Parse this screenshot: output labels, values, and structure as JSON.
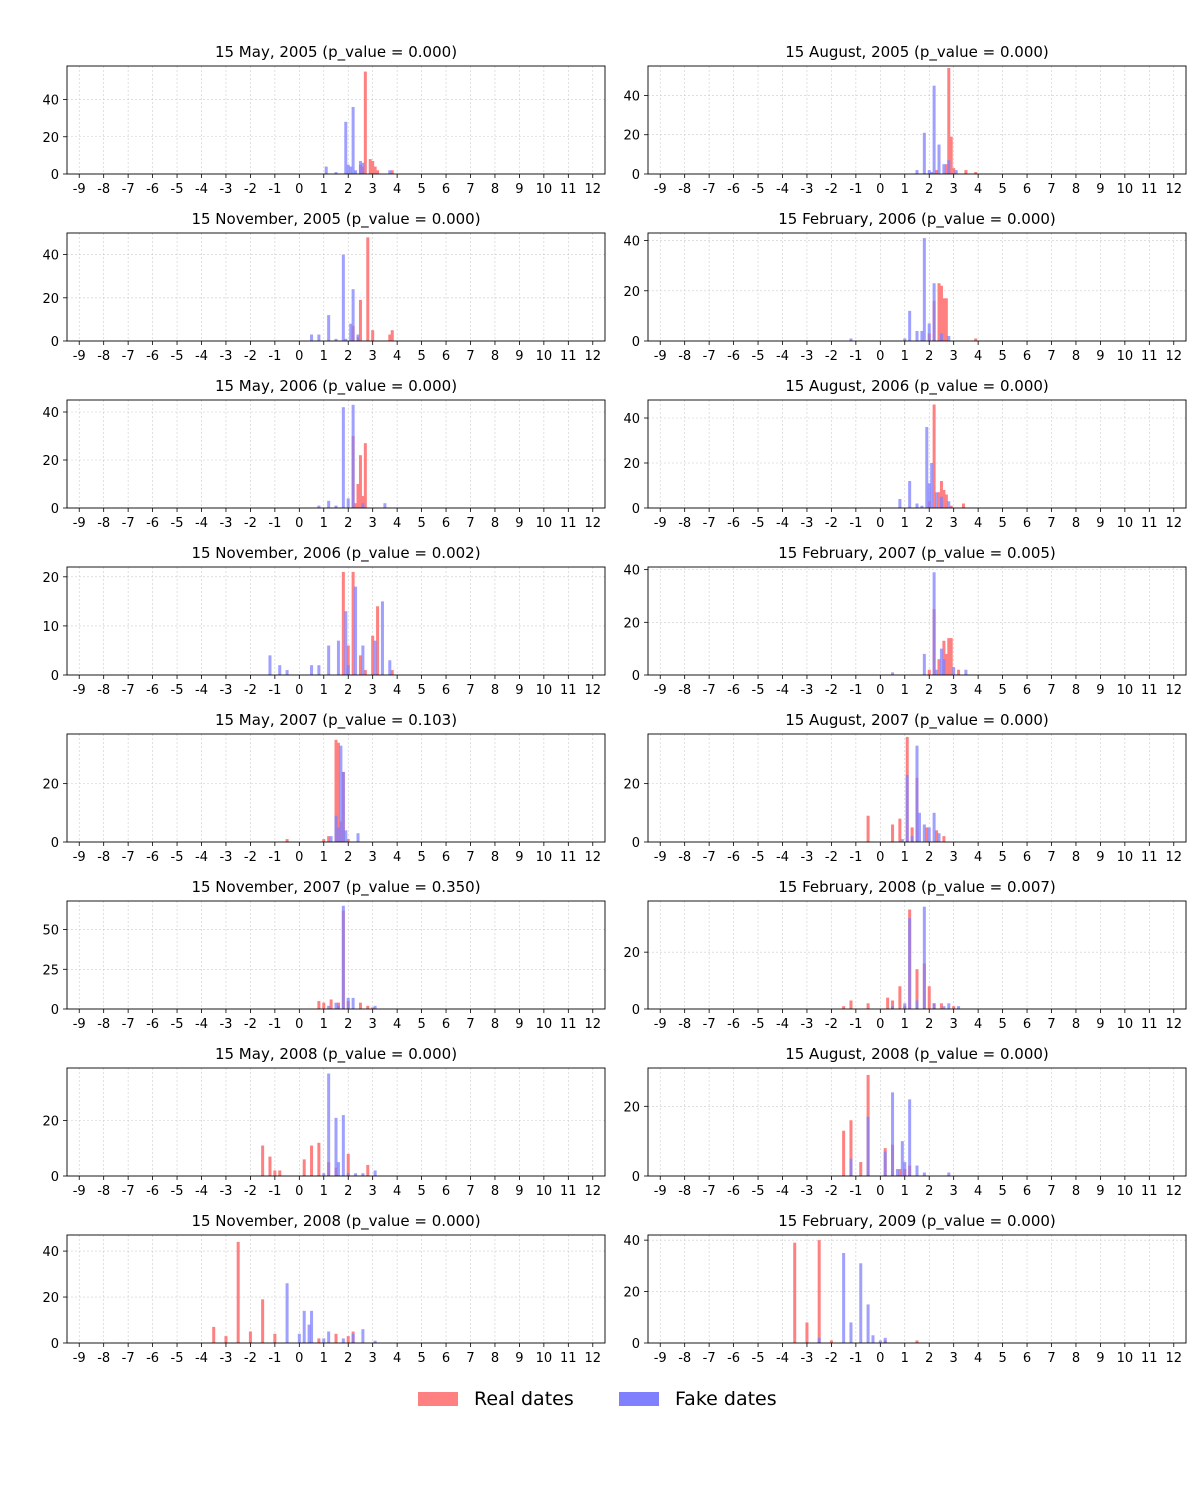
{
  "chart_data": {
    "type": "bar",
    "layout": "grid-2-columns",
    "x_ticks": [
      "-9",
      "-8",
      "-7",
      "-6",
      "-5",
      "-4",
      "-3",
      "-2",
      "-1",
      "0",
      "1",
      "2",
      "3",
      "4",
      "5",
      "6",
      "7",
      "8",
      "9",
      "10",
      "11",
      "12"
    ],
    "xlim": [
      -9.5,
      12.5
    ],
    "grid": true,
    "colors": {
      "real": "#ff8080",
      "fake": "#8080ff",
      "overlap": "#8040c0"
    },
    "legend": {
      "position": "bottom-center",
      "entries": [
        "Real dates",
        "Fake dates"
      ]
    },
    "panels": [
      {
        "title": "15 May, 2005 (p_value = 0.000)",
        "ylim": [
          0,
          58
        ],
        "yticks": [
          "0",
          "20",
          "40"
        ],
        "series": [
          {
            "name": "Real dates",
            "x": [
              2.7,
              2.9,
              3.0,
              3.1,
              2.5,
              2.6,
              3.8,
              3.2
            ],
            "values": [
              55,
              8,
              7,
              4,
              5,
              4,
              2,
              2
            ]
          },
          {
            "name": "Fake dates",
            "x": [
              1.9,
              2.2,
              1.1,
              2.0,
              2.1,
              2.5,
              2.6,
              2.3,
              1.5,
              3.7
            ],
            "values": [
              28,
              36,
              4,
              5,
              4,
              7,
              6,
              2,
              1,
              2
            ]
          }
        ]
      },
      {
        "title": "15 August, 2005 (p_value = 0.000)",
        "ylim": [
          0,
          55
        ],
        "yticks": [
          "0",
          "20",
          "40"
        ],
        "series": [
          {
            "name": "Real dates",
            "x": [
              2.8,
              2.9,
              3.0,
              2.7,
              3.5,
              3.9,
              2.3
            ],
            "values": [
              54,
              19,
              3,
              5,
              2,
              1,
              2
            ]
          },
          {
            "name": "Fake dates",
            "x": [
              1.8,
              2.2,
              2.4,
              2.0,
              2.6,
              2.8,
              1.5,
              3.1,
              2.1
            ],
            "values": [
              21,
              45,
              15,
              2,
              5,
              7,
              2,
              2,
              1
            ]
          }
        ]
      },
      {
        "title": "15 November, 2005 (p_value = 0.000)",
        "ylim": [
          0,
          50
        ],
        "yticks": [
          "0",
          "20",
          "40"
        ],
        "series": [
          {
            "name": "Real dates",
            "x": [
              2.8,
              2.5,
              3.7,
              3.8,
              2.2,
              3.0,
              2.4
            ],
            "values": [
              48,
              19,
              3,
              5,
              7,
              5,
              2
            ]
          },
          {
            "name": "Fake dates",
            "x": [
              1.8,
              2.2,
              2.1,
              1.2,
              0.5,
              0.8,
              2.4,
              1.5,
              1.9
            ],
            "values": [
              40,
              24,
              8,
              12,
              3,
              3,
              3,
              1,
              1
            ]
          }
        ]
      },
      {
        "title": "15 February, 2006 (p_value = 0.000)",
        "ylim": [
          0,
          43
        ],
        "yticks": [
          "0",
          "20",
          "40"
        ],
        "series": [
          {
            "name": "Real dates",
            "x": [
              2.2,
              2.4,
              2.5,
              2.6,
              2.7,
              2.0,
              3.9
            ],
            "values": [
              16,
              23,
              22,
              17,
              17,
              3,
              1
            ]
          },
          {
            "name": "Fake dates",
            "x": [
              1.8,
              2.2,
              1.2,
              2.0,
              1.5,
              1.7,
              2.5,
              2.8,
              1.0,
              -1.2
            ],
            "values": [
              41,
              23,
              12,
              7,
              4,
              4,
              3,
              2,
              1,
              1
            ]
          }
        ]
      },
      {
        "title": "15 May, 2006 (p_value = 0.000)",
        "ylim": [
          0,
          45
        ],
        "yticks": [
          "0",
          "20",
          "40"
        ],
        "series": [
          {
            "name": "Real dates",
            "x": [
              2.2,
              2.5,
              2.7,
              2.4,
              2.6,
              2.3
            ],
            "values": [
              30,
              22,
              27,
              10,
              5,
              2
            ]
          },
          {
            "name": "Fake dates",
            "x": [
              1.8,
              2.2,
              2.0,
              1.2,
              2.6,
              3.5,
              0.8,
              1.5
            ],
            "values": [
              42,
              43,
              4,
              3,
              2,
              2,
              1,
              1
            ]
          }
        ]
      },
      {
        "title": "15 August, 2006 (p_value = 0.000)",
        "ylim": [
          0,
          48
        ],
        "yticks": [
          "0",
          "20",
          "40"
        ],
        "series": [
          {
            "name": "Real dates",
            "x": [
              2.2,
              2.5,
              2.4,
              2.6,
              2.7,
              2.0,
              3.4,
              2.9
            ],
            "values": [
              46,
              12,
              7,
              8,
              6,
              3,
              2,
              1
            ]
          },
          {
            "name": "Fake dates",
            "x": [
              1.9,
              2.1,
              2.0,
              1.2,
              0.8,
              2.3,
              2.5,
              1.5,
              2.8,
              1.7
            ],
            "values": [
              36,
              20,
              11,
              12,
              4,
              7,
              5,
              2,
              3,
              1
            ]
          }
        ]
      },
      {
        "title": "15 November, 2006 (p_value = 0.002)",
        "ylim": [
          0,
          22
        ],
        "yticks": [
          "0",
          "10",
          "20"
        ],
        "series": [
          {
            "name": "Real dates",
            "x": [
              1.8,
              2.2,
              3.2,
              3.0,
              2.0,
              2.5,
              3.8,
              2.7
            ],
            "values": [
              21,
              21,
              14,
              8,
              6,
              4,
              1,
              1
            ]
          },
          {
            "name": "Fake dates",
            "x": [
              1.9,
              2.3,
              3.4,
              3.1,
              1.6,
              2.6,
              1.2,
              -1.2,
              -0.8,
              0.5,
              0.8,
              3.7,
              2.0,
              -0.5
            ],
            "values": [
              13,
              18,
              15,
              7,
              7,
              6,
              6,
              4,
              2,
              2,
              2,
              3,
              2,
              1
            ]
          }
        ]
      },
      {
        "title": "15 February, 2007 (p_value = 0.005)",
        "ylim": [
          0,
          41
        ],
        "yticks": [
          "0",
          "20",
          "40"
        ],
        "series": [
          {
            "name": "Real dates",
            "x": [
              2.2,
              2.6,
              2.8,
              2.9,
              2.7,
              2.4,
              3.2,
              2.0
            ],
            "values": [
              25,
              13,
              14,
              14,
              8,
              6,
              2,
              2
            ]
          },
          {
            "name": "Fake dates",
            "x": [
              2.2,
              1.8,
              2.5,
              2.6,
              3.0,
              3.5,
              0.5,
              2.3
            ],
            "values": [
              39,
              8,
              10,
              6,
              3,
              2,
              1,
              2
            ]
          }
        ]
      },
      {
        "title": "15 May, 2007 (p_value = 0.103)",
        "ylim": [
          0,
          37
        ],
        "yticks": [
          "0",
          "20"
        ],
        "series": [
          {
            "name": "Real dates",
            "x": [
              1.5,
              1.6,
              1.8,
              1.7,
              1.0,
              1.2,
              2.0,
              -0.5
            ],
            "values": [
              35,
              34,
              24,
              7,
              1,
              2,
              1,
              1
            ]
          },
          {
            "name": "Fake dates",
            "x": [
              1.7,
              1.8,
              1.5,
              1.9,
              2.4,
              1.3,
              1.6
            ],
            "values": [
              33,
              24,
              9,
              4,
              3,
              2,
              5
            ]
          }
        ]
      },
      {
        "title": "15 August, 2007 (p_value = 0.000)",
        "ylim": [
          0,
          37
        ],
        "yticks": [
          "0",
          "20"
        ],
        "series": [
          {
            "name": "Real dates",
            "x": [
              1.1,
              1.5,
              -0.5,
              0.5,
              0.8,
              1.9,
              2.3,
              1.3,
              2.6
            ],
            "values": [
              36,
              22,
              9,
              6,
              8,
              5,
              4,
              5,
              2
            ]
          },
          {
            "name": "Fake dates",
            "x": [
              1.1,
              1.5,
              1.6,
              2.2,
              2.0,
              1.8,
              2.4,
              1.3,
              0.9
            ],
            "values": [
              23,
              33,
              10,
              10,
              5,
              6,
              3,
              2,
              1
            ]
          }
        ]
      },
      {
        "title": "15 November, 2007 (p_value = 0.350)",
        "ylim": [
          0,
          68
        ],
        "yticks": [
          "0",
          "25",
          "50"
        ],
        "series": [
          {
            "name": "Real dates",
            "x": [
              1.8,
              0.8,
              1.0,
              1.3,
              1.6,
              2.0,
              2.5,
              2.8,
              3.0
            ],
            "values": [
              62,
              5,
              4,
              6,
              4,
              5,
              4,
              2,
              1
            ]
          },
          {
            "name": "Fake dates",
            "x": [
              1.8,
              2.2,
              2.0,
              1.5,
              1.2,
              1.6,
              3.1
            ],
            "values": [
              65,
              7,
              7,
              4,
              2,
              2,
              2
            ]
          }
        ]
      },
      {
        "title": "15 February, 2008 (p_value = 0.007)",
        "ylim": [
          0,
          38
        ],
        "yticks": [
          "0",
          "20"
        ],
        "series": [
          {
            "name": "Real dates",
            "x": [
              1.2,
              1.8,
              1.5,
              2.0,
              0.8,
              0.3,
              0.5,
              -0.5,
              -1.2,
              2.5,
              3.0,
              1.0,
              -1.5,
              2.2
            ],
            "values": [
              35,
              16,
              14,
              8,
              8,
              4,
              3,
              2,
              3,
              2,
              1,
              1,
              1,
              2
            ]
          },
          {
            "name": "Fake dates",
            "x": [
              1.8,
              1.2,
              1.5,
              2.2,
              1.0,
              2.8,
              3.2,
              0.5,
              2.6
            ],
            "values": [
              36,
              32,
              3,
              2,
              2,
              2,
              1,
              1,
              1
            ]
          }
        ]
      },
      {
        "title": "15 May, 2008 (p_value = 0.000)",
        "ylim": [
          0,
          39
        ],
        "yticks": [
          "0",
          "20"
        ],
        "series": [
          {
            "name": "Real dates",
            "x": [
              -1.5,
              -1.2,
              -0.8,
              0.5,
              0.8,
              2.0,
              1.2,
              2.8,
              0.2,
              1.5,
              -1.0
            ],
            "values": [
              11,
              7,
              2,
              11,
              12,
              8,
              5,
              4,
              6,
              3,
              2
            ]
          },
          {
            "name": "Fake dates",
            "x": [
              1.2,
              1.5,
              1.8,
              1.6,
              2.3,
              1.0,
              2.6,
              3.1,
              2.0
            ],
            "values": [
              37,
              21,
              22,
              5,
              1,
              1,
              1,
              2,
              1
            ]
          }
        ]
      },
      {
        "title": "15 August, 2008 (p_value = 0.000)",
        "ylim": [
          0,
          31
        ],
        "yticks": [
          "0",
          "20"
        ],
        "series": [
          {
            "name": "Real dates",
            "x": [
              -0.5,
              -1.5,
              -1.2,
              0.5,
              0.2,
              -0.8,
              1.0,
              0.8,
              1.2
            ],
            "values": [
              29,
              13,
              16,
              9,
              8,
              4,
              2,
              2,
              3
            ]
          },
          {
            "name": "Fake dates",
            "x": [
              0.5,
              1.2,
              0.9,
              -0.5,
              0.2,
              1.0,
              1.5,
              -1.2,
              2.8,
              1.8,
              0.7
            ],
            "values": [
              24,
              22,
              10,
              17,
              7,
              4,
              3,
              5,
              1,
              1,
              2
            ]
          }
        ]
      },
      {
        "title": "15 November, 2008 (p_value = 0.000)",
        "ylim": [
          0,
          47
        ],
        "yticks": [
          "0",
          "20",
          "40"
        ],
        "series": [
          {
            "name": "Real dates",
            "x": [
              -2.5,
              -1.5,
              -3.5,
              -3.0,
              -2.0,
              -1.0,
              1.5,
              2.0,
              2.2,
              0.8
            ],
            "values": [
              44,
              19,
              7,
              3,
              5,
              4,
              4,
              3,
              5,
              2
            ]
          },
          {
            "name": "Fake dates",
            "x": [
              -0.5,
              0.2,
              0.5,
              0.4,
              1.2,
              2.6,
              2.2,
              0.0,
              1.0,
              3.1,
              1.8
            ],
            "values": [
              26,
              14,
              14,
              8,
              5,
              6,
              4,
              4,
              2,
              1,
              2
            ]
          }
        ]
      },
      {
        "title": "15 February, 2009 (p_value = 0.000)",
        "ylim": [
          0,
          42
        ],
        "yticks": [
          "0",
          "20",
          "40"
        ],
        "series": [
          {
            "name": "Real dates",
            "x": [
              -3.5,
              -2.5,
              -3.0,
              -2.0,
              1.5,
              0.2
            ],
            "values": [
              39,
              40,
              8,
              1,
              1,
              1
            ]
          },
          {
            "name": "Fake dates",
            "x": [
              -1.5,
              -0.8,
              -0.5,
              -1.2,
              -0.3,
              0.2,
              -2.5,
              0.0
            ],
            "values": [
              35,
              31,
              15,
              8,
              3,
              2,
              2,
              1
            ]
          }
        ]
      }
    ]
  }
}
